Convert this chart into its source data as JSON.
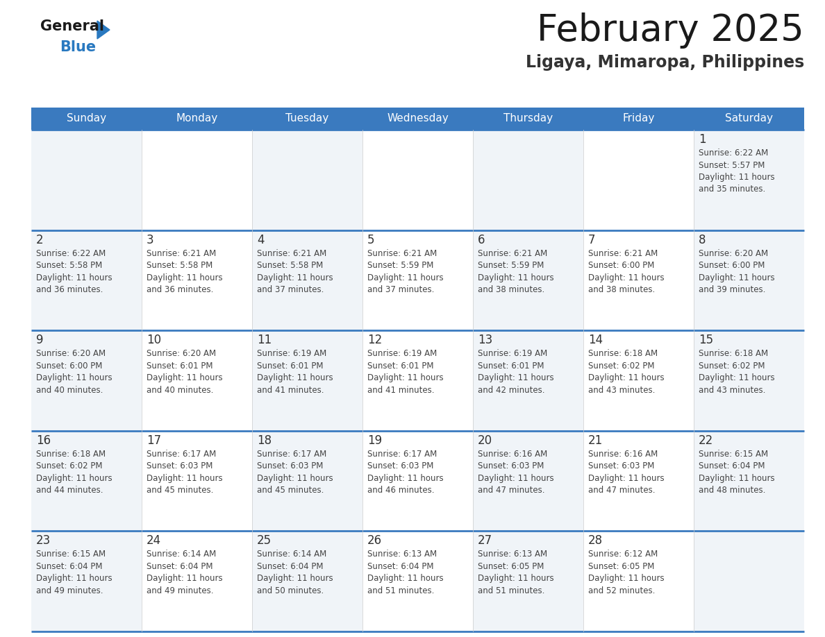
{
  "title": "February 2025",
  "subtitle": "Ligaya, Mimaropa, Philippines",
  "header_bg": "#3a7abf",
  "header_text": "#ffffff",
  "cell_bg_even": "#f0f4f8",
  "cell_bg_odd": "#ffffff",
  "day_number_color": "#333333",
  "text_color": "#444444",
  "border_color": "#3a7abf",
  "days_of_week": [
    "Sunday",
    "Monday",
    "Tuesday",
    "Wednesday",
    "Thursday",
    "Friday",
    "Saturday"
  ],
  "logo_general_color": "#1a1a1a",
  "logo_blue_color": "#2979c0",
  "logo_triangle_color": "#2979c0",
  "calendar": [
    [
      null,
      null,
      null,
      null,
      null,
      null,
      {
        "day": 1,
        "sunrise": "6:22 AM",
        "sunset": "5:57 PM",
        "daylight": "11 hours\nand 35 minutes."
      }
    ],
    [
      {
        "day": 2,
        "sunrise": "6:22 AM",
        "sunset": "5:58 PM",
        "daylight": "11 hours\nand 36 minutes."
      },
      {
        "day": 3,
        "sunrise": "6:21 AM",
        "sunset": "5:58 PM",
        "daylight": "11 hours\nand 36 minutes."
      },
      {
        "day": 4,
        "sunrise": "6:21 AM",
        "sunset": "5:58 PM",
        "daylight": "11 hours\nand 37 minutes."
      },
      {
        "day": 5,
        "sunrise": "6:21 AM",
        "sunset": "5:59 PM",
        "daylight": "11 hours\nand 37 minutes."
      },
      {
        "day": 6,
        "sunrise": "6:21 AM",
        "sunset": "5:59 PM",
        "daylight": "11 hours\nand 38 minutes."
      },
      {
        "day": 7,
        "sunrise": "6:21 AM",
        "sunset": "6:00 PM",
        "daylight": "11 hours\nand 38 minutes."
      },
      {
        "day": 8,
        "sunrise": "6:20 AM",
        "sunset": "6:00 PM",
        "daylight": "11 hours\nand 39 minutes."
      }
    ],
    [
      {
        "day": 9,
        "sunrise": "6:20 AM",
        "sunset": "6:00 PM",
        "daylight": "11 hours\nand 40 minutes."
      },
      {
        "day": 10,
        "sunrise": "6:20 AM",
        "sunset": "6:01 PM",
        "daylight": "11 hours\nand 40 minutes."
      },
      {
        "day": 11,
        "sunrise": "6:19 AM",
        "sunset": "6:01 PM",
        "daylight": "11 hours\nand 41 minutes."
      },
      {
        "day": 12,
        "sunrise": "6:19 AM",
        "sunset": "6:01 PM",
        "daylight": "11 hours\nand 41 minutes."
      },
      {
        "day": 13,
        "sunrise": "6:19 AM",
        "sunset": "6:01 PM",
        "daylight": "11 hours\nand 42 minutes."
      },
      {
        "day": 14,
        "sunrise": "6:18 AM",
        "sunset": "6:02 PM",
        "daylight": "11 hours\nand 43 minutes."
      },
      {
        "day": 15,
        "sunrise": "6:18 AM",
        "sunset": "6:02 PM",
        "daylight": "11 hours\nand 43 minutes."
      }
    ],
    [
      {
        "day": 16,
        "sunrise": "6:18 AM",
        "sunset": "6:02 PM",
        "daylight": "11 hours\nand 44 minutes."
      },
      {
        "day": 17,
        "sunrise": "6:17 AM",
        "sunset": "6:03 PM",
        "daylight": "11 hours\nand 45 minutes."
      },
      {
        "day": 18,
        "sunrise": "6:17 AM",
        "sunset": "6:03 PM",
        "daylight": "11 hours\nand 45 minutes."
      },
      {
        "day": 19,
        "sunrise": "6:17 AM",
        "sunset": "6:03 PM",
        "daylight": "11 hours\nand 46 minutes."
      },
      {
        "day": 20,
        "sunrise": "6:16 AM",
        "sunset": "6:03 PM",
        "daylight": "11 hours\nand 47 minutes."
      },
      {
        "day": 21,
        "sunrise": "6:16 AM",
        "sunset": "6:03 PM",
        "daylight": "11 hours\nand 47 minutes."
      },
      {
        "day": 22,
        "sunrise": "6:15 AM",
        "sunset": "6:04 PM",
        "daylight": "11 hours\nand 48 minutes."
      }
    ],
    [
      {
        "day": 23,
        "sunrise": "6:15 AM",
        "sunset": "6:04 PM",
        "daylight": "11 hours\nand 49 minutes."
      },
      {
        "day": 24,
        "sunrise": "6:14 AM",
        "sunset": "6:04 PM",
        "daylight": "11 hours\nand 49 minutes."
      },
      {
        "day": 25,
        "sunrise": "6:14 AM",
        "sunset": "6:04 PM",
        "daylight": "11 hours\nand 50 minutes."
      },
      {
        "day": 26,
        "sunrise": "6:13 AM",
        "sunset": "6:04 PM",
        "daylight": "11 hours\nand 51 minutes."
      },
      {
        "day": 27,
        "sunrise": "6:13 AM",
        "sunset": "6:05 PM",
        "daylight": "11 hours\nand 51 minutes."
      },
      {
        "day": 28,
        "sunrise": "6:12 AM",
        "sunset": "6:05 PM",
        "daylight": "11 hours\nand 52 minutes."
      },
      null
    ]
  ]
}
